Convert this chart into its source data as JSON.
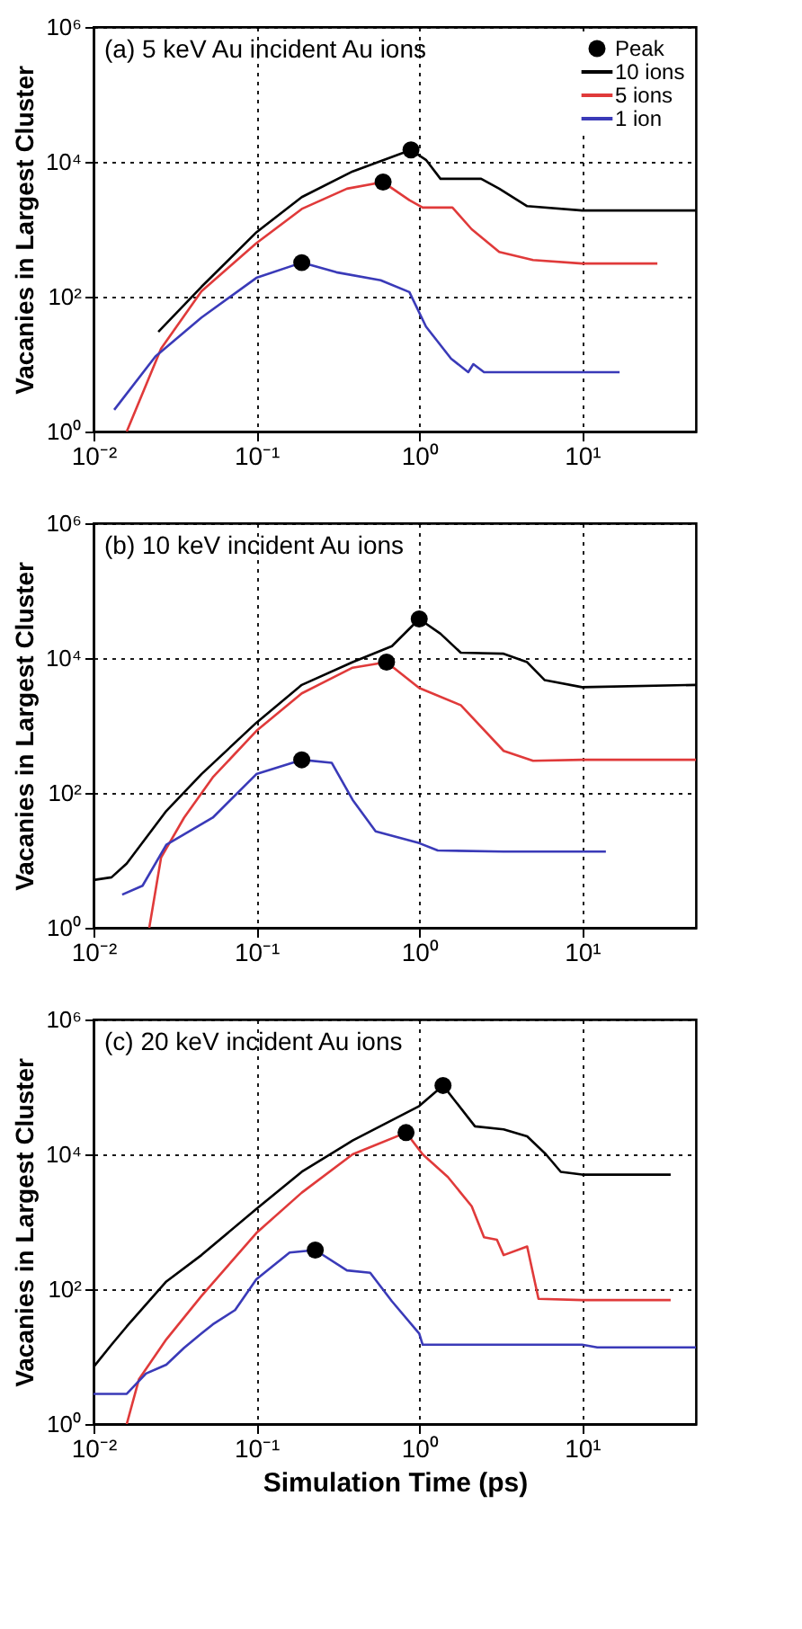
{
  "chart_data": [
    {
      "type": "line",
      "title": "(a) 5 keV Au incident Au ions",
      "ylabel": "Vacanies in Largest Cluster",
      "log": "xy",
      "grid": true,
      "legend": "top right",
      "xlim": [
        0.01,
        50
      ],
      "ylim": [
        1,
        1000000
      ],
      "xticks": [
        {
          "value": 0.01,
          "label": "10⁻²"
        },
        {
          "value": 0.1,
          "label": "10⁻¹"
        },
        {
          "value": 1,
          "label": "10⁰"
        },
        {
          "value": 10,
          "label": "10¹"
        }
      ],
      "yticks": [
        {
          "value": 1,
          "label": "10⁰"
        },
        {
          "value": 100,
          "label": "10²"
        },
        {
          "value": 10000,
          "label": "10⁴"
        },
        {
          "value": 1000000,
          "label": "10⁶"
        }
      ],
      "series": [
        {
          "name": "Peak",
          "type": "scatter",
          "marker": "circle",
          "color": "#000000",
          "x": [
            0.89,
            0.6,
            0.19
          ],
          "values": [
            15000,
            5000,
            320
          ]
        },
        {
          "name": "10 ions",
          "color": "#000000",
          "x": [
            0.025,
            0.046,
            0.1,
            0.19,
            0.39,
            0.89,
            1.1,
            1.35,
            2.4,
            3.1,
            4.6,
            10,
            50
          ],
          "values": [
            30,
            140,
            900,
            3000,
            7200,
            15000,
            10700,
            5600,
            5600,
            4000,
            2200,
            1900,
            1900
          ]
        },
        {
          "name": "5 ions",
          "color": "#e03a3a",
          "x": [
            0.016,
            0.026,
            0.046,
            0.1,
            0.19,
            0.36,
            0.6,
            0.87,
            1.05,
            1.6,
            2.1,
            3.1,
            5,
            10,
            29
          ],
          "values": [
            1,
            17,
            120,
            620,
            2000,
            4000,
            5000,
            2700,
            2100,
            2100,
            1000,
            460,
            350,
            310,
            310
          ]
        },
        {
          "name": "1 ion",
          "color": "#3a3ab8",
          "x": [
            0.0134,
            0.024,
            0.046,
            0.1,
            0.19,
            0.31,
            0.58,
            0.87,
            1.1,
            1.57,
            2.0,
            2.15,
            2.5,
            17
          ],
          "values": [
            2.1,
            13,
            49,
            190,
            320,
            230,
            175,
            117,
            36,
            12,
            7.6,
            10,
            7.6,
            7.6
          ]
        }
      ]
    },
    {
      "type": "line",
      "title": "(b) 10 keV incident Au ions",
      "ylabel": "Vacanies in Largest Cluster",
      "log": "xy",
      "grid": true,
      "xlim": [
        0.01,
        50
      ],
      "ylim": [
        1,
        1000000
      ],
      "xticks": [
        {
          "value": 0.01,
          "label": "10⁻²"
        },
        {
          "value": 0.1,
          "label": "10⁻¹"
        },
        {
          "value": 1,
          "label": "10⁰"
        },
        {
          "value": 10,
          "label": "10¹"
        }
      ],
      "yticks": [
        {
          "value": 1,
          "label": "10⁰"
        },
        {
          "value": 100,
          "label": "10²"
        },
        {
          "value": 10000,
          "label": "10⁴"
        },
        {
          "value": 1000000,
          "label": "10⁶"
        }
      ],
      "series": [
        {
          "type": "scatter",
          "marker": "circle",
          "color": "#000000",
          "x": [
            1.0,
            0.63,
            0.19
          ],
          "values": [
            38000,
            8700,
            310
          ]
        },
        {
          "color": "#000000",
          "x": [
            0.01,
            0.0129,
            0.016,
            0.028,
            0.046,
            0.1,
            0.19,
            0.39,
            0.68,
            1.0,
            1.35,
            1.8,
            3.3,
            4.6,
            5.9,
            10,
            50
          ],
          "values": [
            5.1,
            5.6,
            9,
            54,
            190,
            1100,
            4000,
            8700,
            15000,
            38000,
            23000,
            12000,
            11600,
            8700,
            4700,
            3700,
            4000
          ]
        },
        {
          "color": "#e03a3a",
          "x": [
            0.022,
            0.026,
            0.036,
            0.054,
            0.1,
            0.19,
            0.39,
            0.63,
            1.0,
            1.8,
            3.3,
            5,
            10,
            50
          ],
          "values": [
            1,
            11,
            43,
            170,
            830,
            3000,
            7200,
            8700,
            3600,
            2000,
            420,
            300,
            310,
            310
          ]
        },
        {
          "color": "#3a3ab8",
          "x": [
            0.015,
            0.02,
            0.028,
            0.054,
            0.1,
            0.19,
            0.29,
            0.39,
            0.54,
            1.0,
            1.3,
            3.3,
            14
          ],
          "values": [
            3.1,
            4.2,
            17,
            43,
            190,
            310,
            280,
            79,
            27,
            18,
            14,
            13.5,
            13.5
          ]
        }
      ]
    },
    {
      "type": "line",
      "title": "(c) 20 keV incident Au ions",
      "xlabel": "Simulation Time (ps)",
      "ylabel": "Vacanies in Largest Cluster",
      "log": "xy",
      "grid": true,
      "xlim": [
        0.01,
        50
      ],
      "ylim": [
        1,
        1000000
      ],
      "xticks": [
        {
          "value": 0.01,
          "label": "10⁻²"
        },
        {
          "value": 0.1,
          "label": "10⁻¹"
        },
        {
          "value": 1,
          "label": "10⁰"
        },
        {
          "value": 10,
          "label": "10¹"
        }
      ],
      "yticks": [
        {
          "value": 1,
          "label": "10⁰"
        },
        {
          "value": 100,
          "label": "10²"
        },
        {
          "value": 10000,
          "label": "10⁴"
        },
        {
          "value": 1000000,
          "label": "10⁶"
        }
      ],
      "series": [
        {
          "type": "scatter",
          "marker": "circle",
          "color": "#000000",
          "x": [
            1.4,
            0.83,
            0.23
          ],
          "values": [
            105000,
            21000,
            380
          ]
        },
        {
          "color": "#000000",
          "x": [
            0.01,
            0.0129,
            0.016,
            0.028,
            0.046,
            0.1,
            0.19,
            0.39,
            1.0,
            1.4,
            2.2,
            3.3,
            4.6,
            6.0,
            7.4,
            10,
            35
          ],
          "values": [
            7,
            15,
            28,
            130,
            320,
            1550,
            5500,
            16000,
            52000,
            105000,
            26000,
            23500,
            18500,
            10000,
            5500,
            5000,
            5000
          ]
        },
        {
          "color": "#e03a3a",
          "x": [
            0.016,
            0.019,
            0.028,
            0.046,
            0.1,
            0.19,
            0.39,
            0.83,
            1.05,
            1.5,
            2.1,
            2.5,
            3.0,
            3.3,
            4.6,
            5.4,
            10,
            35
          ],
          "values": [
            1,
            4.6,
            18,
            79,
            680,
            2700,
            10000,
            21000,
            10000,
            4600,
            1700,
            590,
            540,
            320,
            430,
            72,
            69,
            69
          ]
        },
        {
          "color": "#3a3ab8",
          "x": [
            0.01,
            0.016,
            0.021,
            0.028,
            0.036,
            0.046,
            0.054,
            0.074,
            0.1,
            0.16,
            0.23,
            0.36,
            0.5,
            0.68,
            1.0,
            1.05,
            10,
            12.4,
            50
          ],
          "values": [
            2.8,
            2.8,
            5.6,
            7.6,
            13.5,
            22,
            30,
            49,
            140,
            350,
            380,
            190,
            175,
            66,
            22,
            15,
            15,
            13.7,
            13.7
          ]
        }
      ]
    }
  ]
}
